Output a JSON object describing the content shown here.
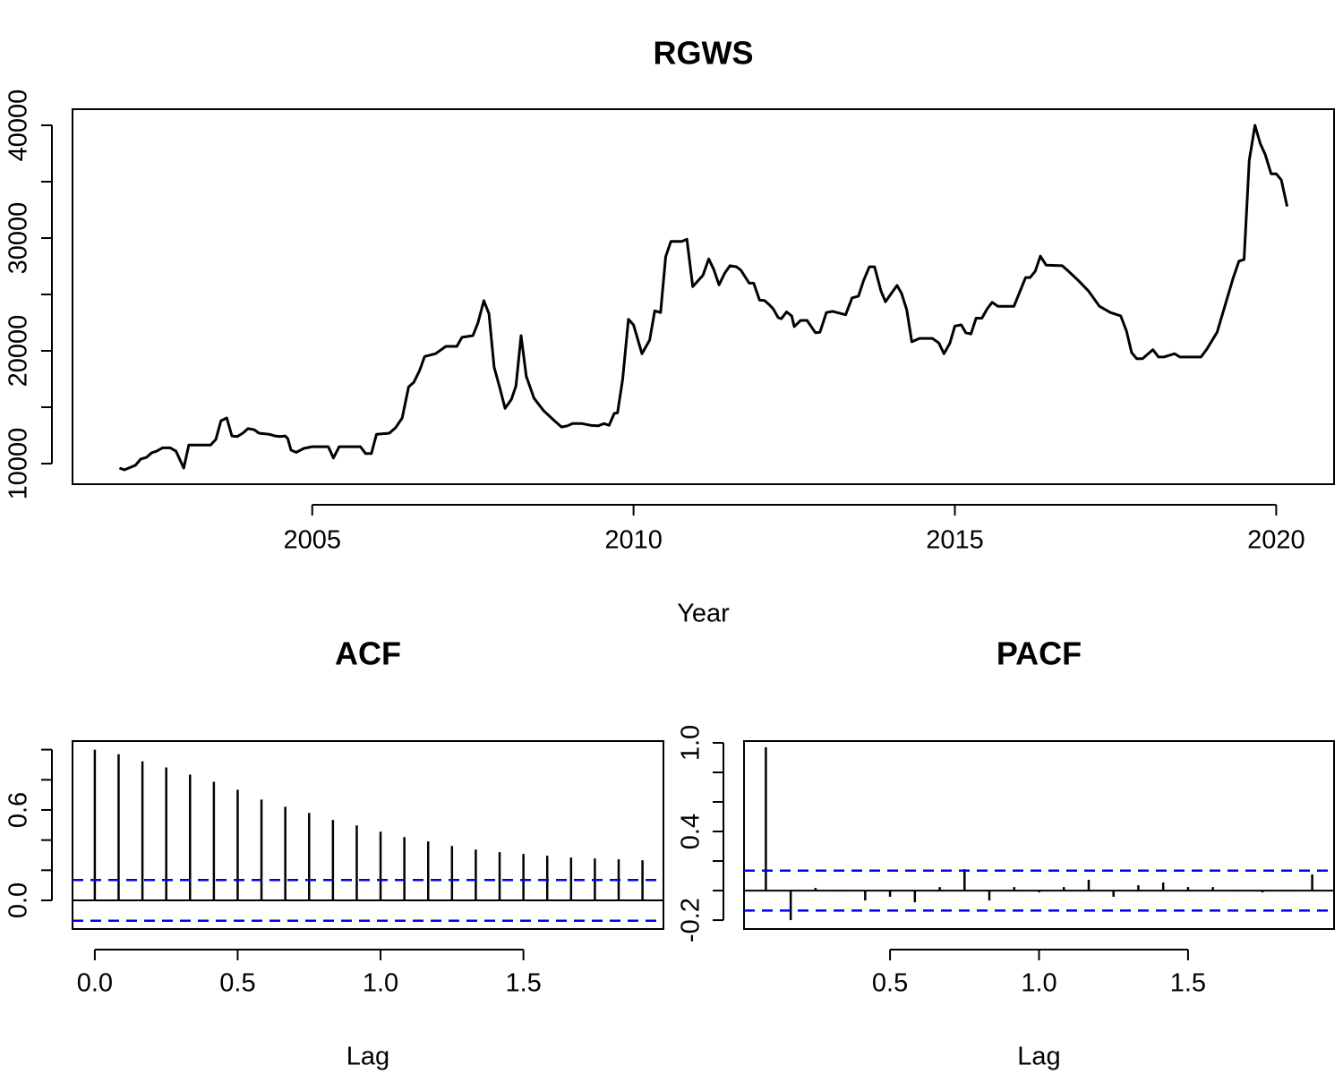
{
  "chart_data": [
    {
      "type": "line",
      "title": "RGWS",
      "xlabel": "Year",
      "color": "#000000",
      "x": [
        2002.0,
        2002.08,
        2002.25,
        2002.33,
        2002.42,
        2002.5,
        2002.58,
        2002.67,
        2002.79,
        2002.88,
        2003.0,
        2003.08,
        2003.42,
        2003.5,
        2003.58,
        2003.67,
        2003.75,
        2003.83,
        2003.92,
        2004.0,
        2004.1,
        2004.17,
        2004.33,
        2004.42,
        2004.5,
        2004.58,
        2004.62,
        2004.67,
        2004.75,
        2004.87,
        2005.0,
        2005.25,
        2005.33,
        2005.42,
        2005.75,
        2005.83,
        2005.92,
        2006.0,
        2006.2,
        2006.3,
        2006.4,
        2006.5,
        2006.58,
        2006.67,
        2006.75,
        2006.92,
        2007.08,
        2007.25,
        2007.33,
        2007.5,
        2007.58,
        2007.67,
        2007.75,
        2007.83,
        2007.92,
        2008.0,
        2008.1,
        2008.17,
        2008.25,
        2008.33,
        2008.45,
        2008.6,
        2008.75,
        2008.88,
        2008.97,
        2009.05,
        2009.2,
        2009.33,
        2009.45,
        2009.54,
        2009.62,
        2009.7,
        2009.75,
        2009.83,
        2009.92,
        2010.0,
        2010.13,
        2010.25,
        2010.33,
        2010.42,
        2010.5,
        2010.58,
        2010.75,
        2010.83,
        2010.92,
        2011.08,
        2011.17,
        2011.25,
        2011.33,
        2011.42,
        2011.5,
        2011.6,
        2011.67,
        2011.8,
        2011.87,
        2011.96,
        2012.04,
        2012.1,
        2012.17,
        2012.25,
        2012.3,
        2012.38,
        2012.46,
        2012.5,
        2012.6,
        2012.7,
        2012.83,
        2012.9,
        2013.0,
        2013.1,
        2013.3,
        2013.4,
        2013.5,
        2013.58,
        2013.67,
        2013.75,
        2013.85,
        2013.92,
        2014.0,
        2014.1,
        2014.17,
        2014.25,
        2014.33,
        2014.45,
        2014.65,
        2014.75,
        2014.83,
        2014.92,
        2015.0,
        2015.1,
        2015.17,
        2015.25,
        2015.33,
        2015.42,
        2015.5,
        2015.58,
        2015.67,
        2015.92,
        2016.1,
        2016.17,
        2016.25,
        2016.33,
        2016.42,
        2016.67,
        2016.75,
        2016.92,
        2017.08,
        2017.25,
        2017.42,
        2017.58,
        2017.67,
        2017.75,
        2017.83,
        2017.92,
        2018.08,
        2018.17,
        2018.25,
        2018.42,
        2018.5,
        2018.83,
        2018.92,
        2019.08,
        2019.2,
        2019.33,
        2019.42,
        2019.5,
        2019.58,
        2019.67,
        2019.75,
        2019.83,
        2019.92,
        2020.0,
        2020.08,
        2020.17
      ],
      "values": [
        9600,
        9450,
        9850,
        10400,
        10550,
        10950,
        11100,
        11400,
        11400,
        11100,
        9600,
        11650,
        11650,
        12150,
        13800,
        14050,
        12450,
        12400,
        12700,
        13100,
        13000,
        12700,
        12600,
        12450,
        12400,
        12450,
        12200,
        11200,
        11000,
        11350,
        11500,
        11500,
        10500,
        11500,
        11500,
        10900,
        10900,
        12600,
        12700,
        13200,
        14050,
        16800,
        17200,
        18250,
        19500,
        19750,
        20400,
        20400,
        21200,
        21350,
        22500,
        24450,
        23300,
        18550,
        16700,
        14900,
        15700,
        16900,
        21350,
        17750,
        15800,
        14700,
        13900,
        13250,
        13350,
        13550,
        13550,
        13400,
        13350,
        13550,
        13400,
        14450,
        14500,
        17450,
        22800,
        22300,
        19750,
        20950,
        23550,
        23400,
        28350,
        29700,
        29700,
        29900,
        25700,
        26700,
        28150,
        27200,
        25850,
        26900,
        27550,
        27450,
        27150,
        26000,
        26000,
        24500,
        24450,
        24150,
        23750,
        22950,
        22850,
        23450,
        23100,
        22150,
        22700,
        22700,
        21600,
        21650,
        23400,
        23500,
        23200,
        24700,
        24850,
        26250,
        27450,
        27450,
        25300,
        24350,
        25000,
        25800,
        25100,
        23650,
        20800,
        21100,
        21100,
        20700,
        19750,
        20650,
        22200,
        22300,
        21600,
        21500,
        22900,
        22900,
        23700,
        24300,
        23950,
        23950,
        26500,
        26500,
        27050,
        28400,
        27600,
        27550,
        27150,
        26250,
        25300,
        23950,
        23400,
        23100,
        21750,
        19850,
        19300,
        19300,
        20100,
        19450,
        19450,
        19750,
        19450,
        19450,
        20150,
        21650,
        23950,
        26450,
        27950,
        28100,
        36900,
        40000,
        38400,
        37400,
        35700,
        35700,
        35150,
        32800
      ],
      "xlim": [
        2001.27,
        2020.9
      ],
      "ylim": [
        8175,
        41429
      ],
      "xticks": [
        2005,
        2010,
        2015,
        2020
      ],
      "yticks": [
        10000,
        20000,
        30000,
        40000
      ],
      "yminor": [
        15000,
        25000,
        35000
      ]
    },
    {
      "type": "stem",
      "title": "ACF",
      "xlabel": "Lag",
      "color": "#000000",
      "ci_color": "#0000ee",
      "x": [
        0,
        0.0833,
        0.1667,
        0.25,
        0.3333,
        0.4167,
        0.5,
        0.5833,
        0.6667,
        0.75,
        0.8333,
        0.9167,
        1,
        1.0833,
        1.1667,
        1.25,
        1.3333,
        1.4167,
        1.5,
        1.5833,
        1.6667,
        1.75,
        1.8333,
        1.9167
      ],
      "values": [
        1.0,
        0.97,
        0.923,
        0.882,
        0.834,
        0.787,
        0.734,
        0.669,
        0.621,
        0.58,
        0.533,
        0.497,
        0.456,
        0.42,
        0.391,
        0.361,
        0.337,
        0.32,
        0.308,
        0.296,
        0.284,
        0.278,
        0.272,
        0.266
      ],
      "ci": [
        0.135,
        -0.135
      ],
      "xlim": [
        -0.078,
        1.99
      ],
      "ylim": [
        -0.19,
        1.057
      ],
      "xticks": [
        {
          "value": 0,
          "label": "0.0"
        },
        0.5,
        {
          "value": 1,
          "label": "1.0"
        },
        1.5
      ],
      "yticks": [
        {
          "value": 0,
          "label": "0.0"
        },
        0.6
      ],
      "yminor": [
        0.2,
        0.4,
        0.8,
        1
      ]
    },
    {
      "type": "stem",
      "title": "PACF",
      "xlabel": "Lag",
      "color": "#000000",
      "ci_color": "#0000ee",
      "x": [
        0.0833,
        0.1667,
        0.25,
        0.3333,
        0.4167,
        0.5,
        0.5833,
        0.6667,
        0.75,
        0.8333,
        0.9167,
        1,
        1.0833,
        1.1667,
        1.25,
        1.3333,
        1.4167,
        1.5,
        1.5833,
        1.6667,
        1.75,
        1.8333,
        1.9167
      ],
      "values": [
        0.97,
        -0.2,
        0.018,
        -0.006,
        -0.067,
        -0.042,
        -0.079,
        0.024,
        0.145,
        -0.067,
        0.024,
        -0.012,
        0.024,
        0.073,
        -0.042,
        0.036,
        0.055,
        0.024,
        0.024,
        -0.006,
        -0.012,
        -0.006,
        0.109
      ],
      "ci": [
        0.135,
        -0.135
      ],
      "xlim": [
        0.01,
        1.99
      ],
      "ylim": [
        -0.26,
        1.012
      ],
      "xticks": [
        0.5,
        {
          "value": 1,
          "label": "1.0"
        },
        1.5
      ],
      "yticks": [
        -0.2,
        0.4,
        {
          "value": 1,
          "label": "1.0"
        }
      ],
      "yminor": [
        0,
        0.2,
        0.6,
        0.8
      ]
    }
  ]
}
